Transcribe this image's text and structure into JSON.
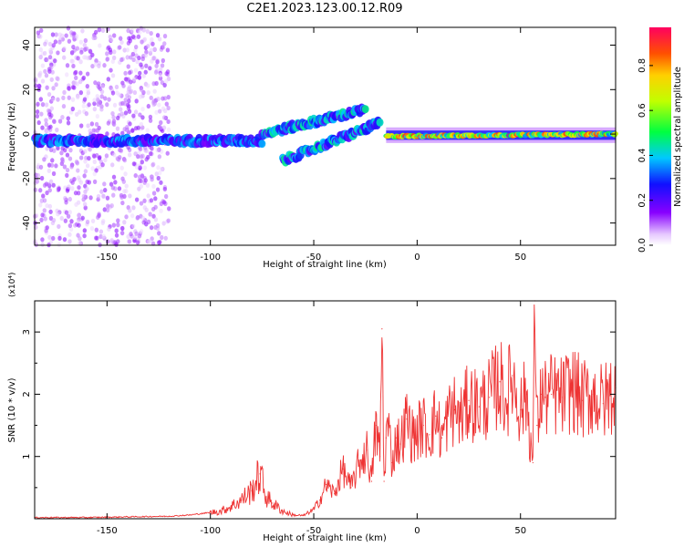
{
  "title": "C2E1.2023.123.00.12.R09",
  "colors": {
    "snr_line": "#ee3333",
    "axis": "#000000"
  },
  "chart_data": [
    {
      "type": "heatmap",
      "xlabel": "Height of straight line (km)",
      "ylabel": "Frequency (Hz)",
      "xlim": [
        -185,
        96
      ],
      "ylim": [
        -50,
        48
      ],
      "xticks": [
        -150,
        -100,
        -50,
        0,
        50
      ],
      "yticks": [
        -40,
        -20,
        0,
        20,
        40
      ],
      "colorbar": {
        "label": "Normalized spectral amplitude",
        "range": [
          0,
          0.97
        ],
        "ticks": [
          0.0,
          0.2,
          0.4,
          0.6,
          0.8
        ],
        "tick_labels": [
          "0.0",
          "0.2",
          "0.4",
          "0.6",
          "0.8"
        ]
      },
      "features": [
        {
          "name": "noise-region",
          "x": [
            -185,
            -120
          ],
          "y": [
            -50,
            48
          ],
          "amplitude": 0.1
        },
        {
          "name": "main-band-left",
          "x": [
            -185,
            -75
          ],
          "y": [
            -3,
            -3
          ],
          "amplitude": 0.25
        },
        {
          "name": "rising-track-upper",
          "x": [
            -75,
            -25
          ],
          "y": [
            0,
            11
          ],
          "amplitude": 0.3
        },
        {
          "name": "rising-track-lower",
          "x": [
            -65,
            -18
          ],
          "y": [
            -12,
            5
          ],
          "amplitude": 0.3
        },
        {
          "name": "flat-band-right",
          "x": [
            -15,
            96
          ],
          "y": [
            -1,
            0
          ],
          "amplitude": 0.55
        }
      ]
    },
    {
      "type": "line",
      "xlabel": "Height of straight line (km)",
      "ylabel": "SNR (10 * v/v)",
      "y_multiplier": "(x10⁴)",
      "xlim": [
        -185,
        96
      ],
      "ylim": [
        0,
        3.5
      ],
      "xticks": [
        -150,
        -100,
        -50,
        0,
        50
      ],
      "yticks": [
        1,
        2,
        3
      ],
      "series": [
        {
          "x": [
            -185,
            -160,
            -140,
            -120,
            -110,
            -100,
            -95,
            -90,
            -85,
            -80,
            -76,
            -73,
            -70,
            -65,
            -60,
            -55,
            -50,
            -47,
            -44,
            -40,
            -36,
            -32,
            -28,
            -24,
            -22,
            -20,
            -18,
            -17,
            -16,
            -15,
            -14,
            -12,
            -10,
            -8,
            -5,
            -2,
            0,
            3,
            6,
            9,
            12,
            15,
            18,
            21,
            25,
            30,
            35,
            40,
            43,
            46,
            50,
            53,
            55,
            56,
            57,
            58,
            60,
            62,
            65,
            70,
            75,
            80,
            85,
            90,
            96
          ],
          "y": [
            0.02,
            0.02,
            0.03,
            0.04,
            0.06,
            0.1,
            0.12,
            0.2,
            0.3,
            0.45,
            0.72,
            0.35,
            0.25,
            0.12,
            0.06,
            0.05,
            0.15,
            0.3,
            0.55,
            0.4,
            0.8,
            0.5,
            0.9,
            1.1,
            0.6,
            1.5,
            1.0,
            3.05,
            0.6,
            1.3,
            1.5,
            0.9,
            1.3,
            1.2,
            1.6,
            1.3,
            1.4,
            1.5,
            1.35,
            1.65,
            1.3,
            1.65,
            1.75,
            1.6,
            1.9,
            1.8,
            1.95,
            2.2,
            1.9,
            2.3,
            1.75,
            2.0,
            1.2,
            0.9,
            3.5,
            1.5,
            2.0,
            1.95,
            2.0,
            1.95,
            2.1,
            1.9,
            2.0,
            1.85,
            2.1
          ]
        }
      ]
    }
  ]
}
